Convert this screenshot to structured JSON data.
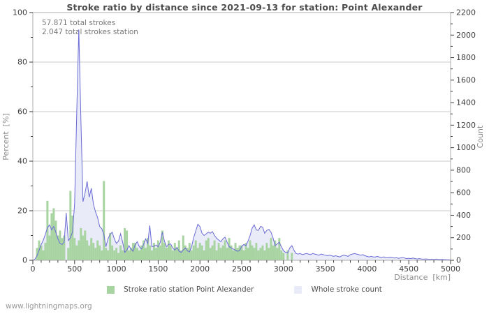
{
  "title": "Stroke ratio by distance since 2021-09-13 for station: Point Alexander",
  "footer": "www.lightningmaps.org",
  "chart_data": {
    "type": "bar",
    "subtype": "bar-ratio with overlaid area-line count",
    "title": "Stroke ratio by distance since 2021-09-13 for station: Point Alexander",
    "annotations": [
      "57.871 total strokes",
      "2.047 total strokes station"
    ],
    "xlabel": "Distance  [km]",
    "ylabel_left": "Percent  [%]",
    "ylabel_right": "Count",
    "xlim": [
      0,
      5000
    ],
    "x_major": 500,
    "x_minor": 100,
    "ylim_left": [
      0,
      100
    ],
    "y_left_major": 20,
    "y_left_minor": 10,
    "ylim_right": [
      0,
      2200
    ],
    "y_right_major": 200,
    "y_right_minor": 100,
    "grid": "horizontal-only",
    "legend_position": "bottom-center",
    "bin_km": 25,
    "x": [
      0,
      25,
      50,
      75,
      100,
      125,
      150,
      175,
      200,
      225,
      250,
      275,
      300,
      325,
      350,
      375,
      400,
      425,
      450,
      475,
      500,
      525,
      550,
      575,
      600,
      625,
      650,
      675,
      700,
      725,
      750,
      775,
      800,
      825,
      850,
      875,
      900,
      925,
      950,
      975,
      1000,
      1025,
      1050,
      1075,
      1100,
      1125,
      1150,
      1175,
      1200,
      1225,
      1250,
      1275,
      1300,
      1325,
      1350,
      1375,
      1400,
      1425,
      1450,
      1475,
      1500,
      1525,
      1550,
      1575,
      1600,
      1625,
      1650,
      1675,
      1700,
      1725,
      1750,
      1775,
      1800,
      1825,
      1850,
      1875,
      1900,
      1925,
      1950,
      1975,
      2000,
      2025,
      2050,
      2075,
      2100,
      2125,
      2150,
      2175,
      2200,
      2225,
      2250,
      2275,
      2300,
      2325,
      2350,
      2375,
      2400,
      2425,
      2450,
      2475,
      2500,
      2525,
      2550,
      2575,
      2600,
      2625,
      2650,
      2675,
      2700,
      2725,
      2750,
      2775,
      2800,
      2825,
      2850,
      2875,
      2900,
      2925,
      2950,
      2975,
      3000,
      3025,
      3050,
      3075,
      3100,
      3125,
      3150,
      3175,
      3200,
      3225,
      3250,
      3275,
      3300,
      3325,
      3350,
      3375,
      3400,
      3425,
      3450,
      3475,
      3500,
      3525,
      3550,
      3575,
      3600,
      3625,
      3650,
      3675,
      3700,
      3725,
      3750,
      3775,
      3800,
      3825,
      3850,
      3875,
      3900,
      3925,
      3950,
      3975,
      4000,
      4025,
      4050,
      4075,
      4100,
      4125,
      4150,
      4175,
      4200,
      4225,
      4250,
      4275,
      4300,
      4325,
      4350,
      4375,
      4400,
      4425,
      4450,
      4475,
      4500,
      4525,
      4550,
      4575,
      4600,
      4625,
      4650,
      4675,
      4700,
      4725,
      4750,
      4775,
      4800,
      4825,
      4850,
      4875,
      4900,
      4925,
      4950,
      4975,
      5000
    ],
    "series": [
      {
        "name": "Stroke ratio station Point Alexander",
        "type": "bar",
        "axis": "left",
        "unit": "%",
        "color": "#a8d4a2",
        "values": [
          0,
          0,
          5,
          8,
          6,
          4,
          7,
          24,
          10,
          19,
          21,
          16,
          10,
          12,
          9,
          10,
          0,
          5,
          28,
          18,
          9,
          6,
          8,
          13,
          10,
          12,
          8,
          6,
          9,
          7,
          5,
          8,
          6,
          4,
          32,
          5,
          4,
          11,
          6,
          4,
          5,
          3,
          6,
          4,
          13,
          12,
          4,
          5,
          7,
          7,
          5,
          4,
          6,
          8,
          5,
          9,
          6,
          4,
          7,
          5,
          8,
          6,
          12,
          7,
          5,
          8,
          6,
          4,
          7,
          5,
          8,
          4,
          10,
          6,
          5,
          7,
          4,
          6,
          8,
          5,
          7,
          6,
          4,
          8,
          9,
          5,
          6,
          8,
          4,
          7,
          5,
          6,
          8,
          5,
          9,
          6,
          4,
          7,
          5,
          6,
          6,
          4,
          7,
          5,
          8,
          6,
          5,
          7,
          4,
          5,
          6,
          4,
          7,
          5,
          9,
          6,
          8,
          5,
          9,
          4,
          3,
          0,
          4,
          0,
          3,
          0,
          0,
          0,
          0,
          0,
          0,
          0,
          0,
          0,
          0,
          0,
          0,
          0,
          0,
          0,
          0,
          0,
          0,
          0,
          0,
          0,
          0,
          0,
          0,
          0,
          0,
          0,
          0,
          0,
          0,
          0,
          0,
          0,
          0,
          0,
          0,
          0,
          0,
          0,
          0,
          0,
          0,
          0,
          0,
          0,
          0,
          0,
          0,
          0,
          0,
          0,
          0,
          0,
          0,
          0,
          0,
          0,
          0,
          0,
          0,
          0,
          0,
          0,
          0,
          0,
          0,
          0,
          0,
          0,
          0,
          0,
          0,
          0,
          0,
          0,
          0
        ]
      },
      {
        "name": "Whole stroke count",
        "type": "area-line",
        "axis": "right",
        "unit": "count",
        "color": "#6b6bd6",
        "fill": "#eaebf8",
        "values": [
          0,
          10,
          40,
          90,
          140,
          180,
          230,
          290,
          315,
          270,
          300,
          250,
          190,
          150,
          140,
          160,
          420,
          175,
          200,
          250,
          500,
          1300,
          2050,
          1250,
          520,
          600,
          700,
          560,
          640,
          500,
          430,
          380,
          300,
          280,
          230,
          120,
          190,
          230,
          250,
          190,
          150,
          170,
          235,
          160,
          70,
          90,
          130,
          100,
          80,
          140,
          165,
          120,
          100,
          140,
          190,
          150,
          310,
          120,
          125,
          135,
          120,
          160,
          250,
          170,
          120,
          140,
          145,
          110,
          90,
          115,
          80,
          70,
          90,
          110,
          85,
          75,
          120,
          200,
          260,
          320,
          300,
          240,
          220,
          235,
          250,
          240,
          255,
          220,
          195,
          180,
          165,
          190,
          205,
          160,
          120,
          110,
          100,
          90,
          80,
          85,
          125,
          140,
          130,
          170,
          220,
          285,
          315,
          270,
          265,
          300,
          295,
          240,
          265,
          275,
          250,
          200,
          130,
          145,
          160,
          120,
          85,
          70,
          65,
          110,
          130,
          90,
          60,
          55,
          60,
          50,
          55,
          60,
          55,
          50,
          60,
          55,
          50,
          45,
          55,
          50,
          45,
          40,
          45,
          40,
          35,
          40,
          35,
          30,
          40,
          45,
          40,
          35,
          50,
          55,
          60,
          55,
          50,
          45,
          50,
          40,
          35,
          30,
          35,
          30,
          30,
          35,
          28,
          25,
          30,
          25,
          22,
          28,
          25,
          20,
          22,
          18,
          20,
          25,
          20,
          15,
          18,
          15,
          20,
          15,
          12,
          15,
          12,
          10,
          12,
          10,
          8,
          10,
          8,
          10,
          8,
          6,
          8,
          6,
          5,
          5,
          4
        ]
      }
    ],
    "legend": [
      "Stroke ratio station Point Alexander",
      "Whole stroke count"
    ],
    "colors": {
      "grid": "#c9c9c9",
      "frame": "#aeaeae",
      "tick": "#3d3d3d",
      "tick_label": "#3d3d3d"
    }
  }
}
